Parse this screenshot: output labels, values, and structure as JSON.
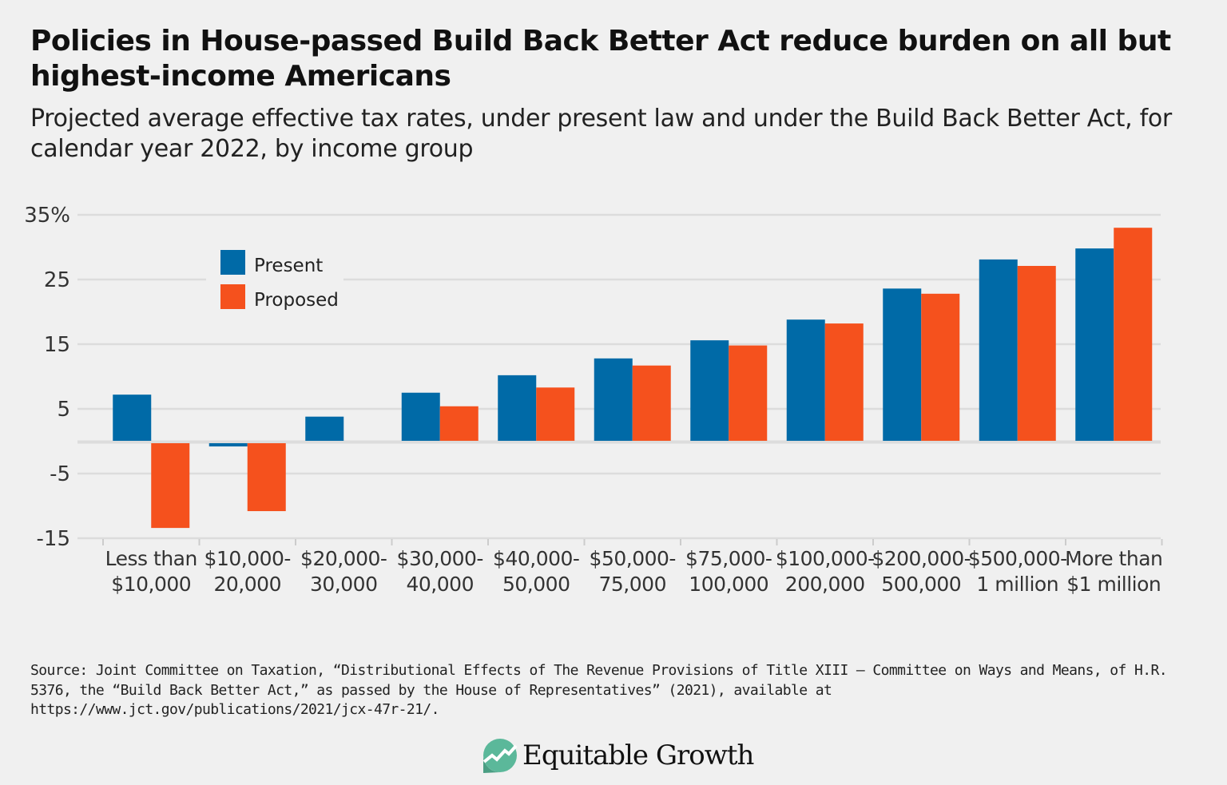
{
  "title": "Policies in House-passed Build Back Better Act reduce burden on all but highest-income Americans",
  "subtitle": "Projected average effective tax rates, under present law and under the Build Back Better Act, for calendar year 2022, by income group",
  "source": "Source: Joint Committee on Taxation, “Distributional Effects of The Revenue Provisions of Title XIII — Committee on Ways and Means, of H.R. 5376, the “Build Back Better Act,” as passed by the House of Representatives” (2021), available at https://www.jct.gov/publications/2021/jcx-47r-21/.",
  "logo": {
    "text": "Equitable Growth",
    "icon": "rising-line-circle-icon",
    "color": "#5bb89a"
  },
  "chart_data": {
    "type": "bar",
    "title": "",
    "xlabel": "",
    "ylabel": "",
    "ylim": [
      -15,
      35
    ],
    "yticks": [
      35,
      25,
      15,
      5,
      -5,
      -15
    ],
    "ytick_labels": [
      "35%",
      "25",
      "15",
      "5",
      "-5",
      "-15"
    ],
    "grid": true,
    "legend_placement": "top-left",
    "categories": [
      [
        "Less than",
        "$10,000"
      ],
      [
        "$10,000-",
        "20,000"
      ],
      [
        "$20,000-",
        "30,000"
      ],
      [
        "$30,000-",
        "40,000"
      ],
      [
        "$40,000-",
        "50,000"
      ],
      [
        "$50,000-",
        "75,000"
      ],
      [
        "$75,000-",
        "100,000"
      ],
      [
        "$100,000-",
        "200,000"
      ],
      [
        "$200,000-",
        "500,000"
      ],
      [
        "$500,000-",
        "1 million"
      ],
      [
        "More than",
        "$1 million"
      ]
    ],
    "series": [
      {
        "name": "Present",
        "color": "#006aa7",
        "values": [
          7.2,
          -0.5,
          3.8,
          7.5,
          10.2,
          12.8,
          15.6,
          18.8,
          23.6,
          28.1,
          29.8
        ]
      },
      {
        "name": "Proposed",
        "color": "#f5511d",
        "values": [
          -13.1,
          -10.5,
          0,
          5.4,
          8.3,
          11.7,
          14.8,
          18.2,
          22.8,
          27.1,
          33.0
        ]
      }
    ]
  }
}
